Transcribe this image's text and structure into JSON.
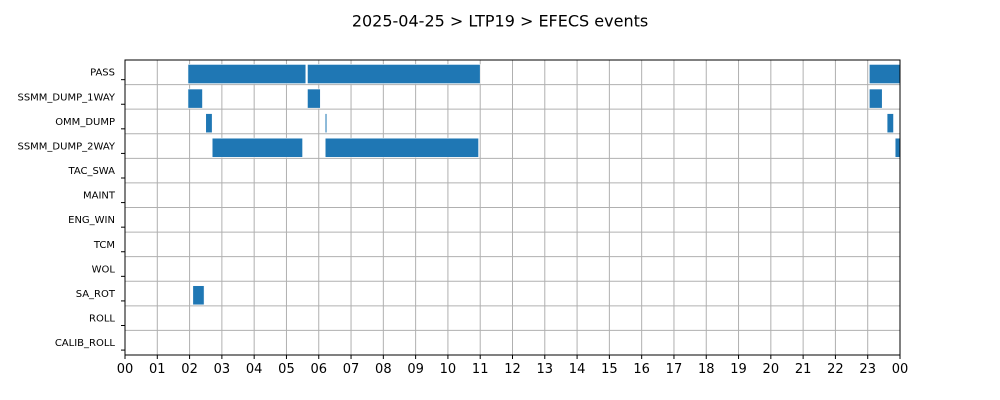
{
  "chart_data": {
    "type": "bar",
    "orientation": "horizontal-gantt",
    "title": "2025-04-25 > LTP19 > EFECS events",
    "xlabel": "",
    "ylabel": "",
    "xlim": [
      0,
      24
    ],
    "grid": true,
    "bar_color": "#1f77b4",
    "grid_color": "#b0b0b0",
    "x_ticks": [
      "00",
      "01",
      "02",
      "03",
      "04",
      "05",
      "06",
      "07",
      "08",
      "09",
      "10",
      "11",
      "12",
      "13",
      "14",
      "15",
      "16",
      "17",
      "18",
      "19",
      "20",
      "21",
      "22",
      "23",
      "00"
    ],
    "categories": [
      "PASS",
      "SSMM_DUMP_1WAY",
      "OMM_DUMP",
      "SSMM_DUMP_2WAY",
      "TAC_SWA",
      "MAINT",
      "ENG_WIN",
      "TCM",
      "WOL",
      "SA_ROT",
      "ROLL",
      "CALIB_ROLL"
    ],
    "series": [
      {
        "category": "PASS",
        "intervals": [
          [
            1.95,
            5.6
          ],
          [
            5.65,
            11.0
          ],
          [
            23.05,
            24.0
          ]
        ]
      },
      {
        "category": "SSMM_DUMP_1WAY",
        "intervals": [
          [
            1.95,
            2.4
          ],
          [
            5.65,
            6.05
          ],
          [
            23.05,
            23.45
          ]
        ]
      },
      {
        "category": "OMM_DUMP",
        "intervals": [
          [
            2.5,
            2.7
          ],
          [
            6.2,
            6.25
          ],
          [
            23.6,
            23.8
          ]
        ]
      },
      {
        "category": "SSMM_DUMP_2WAY",
        "intervals": [
          [
            2.7,
            5.5
          ],
          [
            6.2,
            10.95
          ],
          [
            23.85,
            24.0
          ]
        ]
      },
      {
        "category": "TAC_SWA",
        "intervals": []
      },
      {
        "category": "MAINT",
        "intervals": []
      },
      {
        "category": "ENG_WIN",
        "intervals": []
      },
      {
        "category": "TCM",
        "intervals": []
      },
      {
        "category": "WOL",
        "intervals": []
      },
      {
        "category": "SA_ROT",
        "intervals": [
          [
            2.1,
            2.45
          ]
        ]
      },
      {
        "category": "ROLL",
        "intervals": []
      },
      {
        "category": "CALIB_ROLL",
        "intervals": []
      }
    ]
  }
}
